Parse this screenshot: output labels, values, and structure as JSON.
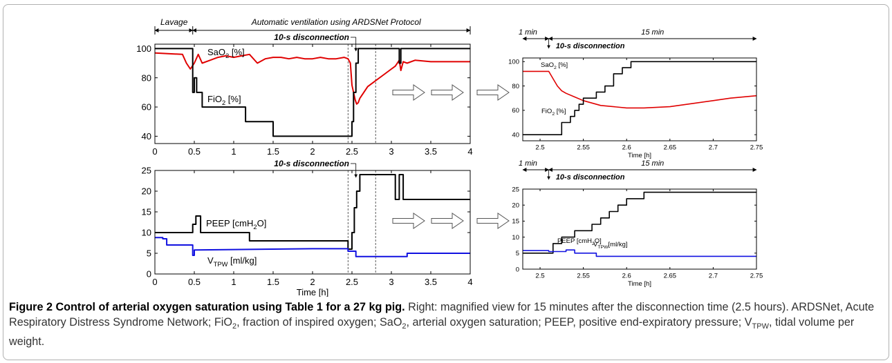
{
  "chart_data": [
    {
      "id": "main-top",
      "type": "line",
      "xlabel": "",
      "xlim": [
        0,
        4
      ],
      "ylim": [
        35,
        103
      ],
      "x_ticks": [
        "0",
        "0.5",
        "1",
        "1.5",
        "2",
        "2.5",
        "3",
        "3.5",
        "4"
      ],
      "y_ticks": [
        "40",
        "60",
        "80",
        "100"
      ],
      "annotations": {
        "lavage": "Lavage",
        "auto": "Automatic ventilation using ARDSNet Protocol",
        "disconnection": "10-s disconnection"
      },
      "series": [
        {
          "name": "SaO2 [%]",
          "color": "#e00000",
          "x": [
            0,
            0.35,
            0.4,
            0.45,
            0.5,
            0.55,
            0.6,
            0.7,
            0.8,
            0.9,
            1.0,
            1.1,
            1.2,
            1.3,
            1.4,
            1.5,
            1.6,
            1.7,
            1.8,
            1.9,
            2.0,
            2.1,
            2.2,
            2.3,
            2.4,
            2.45,
            2.48,
            2.5,
            2.52,
            2.54,
            2.56,
            2.58,
            2.6,
            2.65,
            2.7,
            2.8,
            2.9,
            3.0,
            3.05,
            3.1,
            3.12,
            3.15,
            3.2,
            3.3,
            3.5,
            3.7,
            3.9,
            4.0
          ],
          "y": [
            97,
            96,
            90,
            86,
            90,
            96,
            90,
            92,
            94,
            95,
            94,
            95,
            96,
            90,
            93,
            94,
            94,
            93,
            94,
            93,
            93,
            94,
            93,
            93,
            94,
            93,
            90,
            75,
            70,
            65,
            62,
            63,
            66,
            70,
            74,
            78,
            82,
            86,
            88,
            92,
            85,
            91,
            90,
            92,
            91,
            91,
            91,
            91
          ]
        },
        {
          "name": "FiO2 [%]",
          "color": "#000000",
          "x": [
            0,
            0.48,
            0.48,
            0.5,
            0.5,
            0.53,
            0.53,
            0.6,
            0.6,
            1.15,
            1.15,
            1.5,
            1.5,
            2.45,
            2.45,
            2.5,
            2.5,
            2.52,
            2.52,
            2.55,
            2.55,
            2.58,
            2.58,
            3.1,
            3.1,
            3.12,
            3.12,
            4.0
          ],
          "y": [
            100,
            100,
            70,
            70,
            80,
            80,
            70,
            70,
            60,
            60,
            50,
            50,
            40,
            40,
            40,
            40,
            50,
            50,
            70,
            70,
            90,
            90,
            100,
            100,
            90,
            90,
            100,
            100
          ]
        }
      ],
      "labels": {
        "sao2": "SaO",
        "sao2_sub": "2",
        "sao2_unit": " [%]",
        "fio2": "FiO",
        "fio2_sub": "2",
        "fio2_unit": " [%]"
      }
    },
    {
      "id": "main-bottom",
      "type": "line",
      "xlabel": "Time [h]",
      "xlim": [
        0,
        4
      ],
      "ylim": [
        0,
        25
      ],
      "x_ticks": [
        "0",
        "0.5",
        "1",
        "1.5",
        "2",
        "2.5",
        "3",
        "3.5",
        "4"
      ],
      "y_ticks": [
        "0",
        "5",
        "10",
        "15",
        "20",
        "25"
      ],
      "annotations": {
        "disconnection": "10-s disconnection"
      },
      "series": [
        {
          "name": "PEEP [cmH2O]",
          "color": "#000000",
          "x": [
            0,
            0.48,
            0.48,
            0.52,
            0.52,
            0.58,
            0.58,
            1.2,
            1.2,
            2.45,
            2.45,
            2.5,
            2.5,
            2.53,
            2.53,
            2.56,
            2.56,
            2.6,
            2.6,
            3.05,
            3.05,
            3.1,
            3.1,
            3.15,
            3.15,
            3.2,
            3.2,
            4.0
          ],
          "y": [
            10,
            10,
            12,
            12,
            14,
            14,
            10,
            10,
            8,
            8,
            6,
            6,
            10,
            10,
            16,
            16,
            20,
            20,
            24,
            24,
            18,
            18,
            24,
            24,
            18,
            18,
            18,
            18
          ]
        },
        {
          "name": "VTPW [ml/kg]",
          "color": "#1010e0",
          "x": [
            0,
            0.1,
            0.1,
            0.15,
            0.15,
            0.48,
            0.48,
            0.5,
            0.5,
            1.0,
            1.5,
            2.0,
            2.45,
            2.45,
            2.55,
            2.55,
            3.2,
            3.2,
            4.0
          ],
          "y": [
            8.8,
            8.8,
            8.5,
            8.5,
            7,
            7,
            4.5,
            4.5,
            5.8,
            5.9,
            6,
            6.1,
            6.1,
            5.5,
            5.5,
            4.2,
            4.2,
            5,
            5
          ]
        }
      ],
      "labels": {
        "peep": "PEEP [cmH",
        "peep_sub": "2",
        "peep_unit": "O]",
        "vt": "V",
        "vt_sub": "TPW",
        "vt_unit": " [ml/kg]"
      }
    },
    {
      "id": "zoom-top",
      "type": "line",
      "xlabel": "Time [h]",
      "xlim": [
        2.48,
        2.75
      ],
      "ylim": [
        35,
        103
      ],
      "x_ticks": [
        "2.5",
        "2.55",
        "2.6",
        "2.65",
        "2.7",
        "2.75"
      ],
      "y_ticks": [
        "40",
        "60",
        "80",
        "100"
      ],
      "annotations": {
        "one_min": "1 min",
        "fifteen_min": "15 min",
        "disconnection": "10-s disconnection"
      },
      "series": [
        {
          "name": "SaO2 [%]",
          "color": "#e00000",
          "x": [
            2.48,
            2.5,
            2.51,
            2.515,
            2.52,
            2.525,
            2.53,
            2.54,
            2.55,
            2.57,
            2.6,
            2.62,
            2.65,
            2.68,
            2.7,
            2.72,
            2.75
          ],
          "y": [
            92,
            92,
            92,
            86,
            80,
            76,
            74,
            71,
            68,
            64,
            62,
            62,
            63,
            66,
            68,
            70,
            72
          ]
        },
        {
          "name": "FiO2 [%]",
          "color": "#000000",
          "x": [
            2.48,
            2.51,
            2.51,
            2.525,
            2.525,
            2.535,
            2.535,
            2.54,
            2.54,
            2.545,
            2.545,
            2.55,
            2.55,
            2.555,
            2.555,
            2.565,
            2.565,
            2.575,
            2.575,
            2.585,
            2.585,
            2.595,
            2.595,
            2.605,
            2.605,
            2.75
          ],
          "y": [
            40,
            40,
            40,
            40,
            50,
            50,
            55,
            55,
            60,
            60,
            65,
            65,
            70,
            70,
            70,
            70,
            75,
            75,
            80,
            80,
            90,
            90,
            95,
            95,
            100,
            100
          ]
        }
      ],
      "labels": {
        "sao2": "SaO",
        "sao2_sub": "2",
        "sao2_unit": " [%]",
        "fio2": "FiO",
        "fio2_sub": "2",
        "fio2_unit": " [%]"
      }
    },
    {
      "id": "zoom-bottom",
      "type": "line",
      "xlabel": "Time [h]",
      "xlim": [
        2.48,
        2.75
      ],
      "ylim": [
        0,
        25
      ],
      "x_ticks": [
        "2.5",
        "2.55",
        "2.6",
        "2.65",
        "2.7",
        "2.75"
      ],
      "y_ticks": [
        "0",
        "5",
        "10",
        "15",
        "20",
        "25"
      ],
      "annotations": {
        "one_min": "1 min",
        "fifteen_min": "15 min",
        "disconnection": "10-s disconnection"
      },
      "series": [
        {
          "name": "PEEP [cmH2O]",
          "color": "#000000",
          "x": [
            2.48,
            2.515,
            2.515,
            2.525,
            2.525,
            2.54,
            2.54,
            2.56,
            2.56,
            2.57,
            2.57,
            2.58,
            2.58,
            2.59,
            2.59,
            2.6,
            2.6,
            2.61,
            2.61,
            2.62,
            2.62,
            2.63,
            2.63,
            2.635,
            2.635,
            2.64,
            2.64,
            2.75
          ],
          "y": [
            5,
            5,
            8,
            8,
            10,
            10,
            12,
            12,
            14,
            14,
            16,
            16,
            18,
            18,
            20,
            20,
            22,
            22,
            22,
            22,
            24,
            24,
            24,
            24,
            24,
            24,
            24,
            24
          ]
        },
        {
          "name": "VTPW [ml/kg]",
          "color": "#1010e0",
          "x": [
            2.48,
            2.51,
            2.51,
            2.53,
            2.53,
            2.54,
            2.54,
            2.565,
            2.565,
            2.75
          ],
          "y": [
            5.8,
            5.8,
            5.5,
            5.5,
            6,
            6,
            5,
            5,
            4,
            4
          ]
        }
      ],
      "labels": {
        "peep": "PEEP [cmH",
        "peep_sub": "2",
        "peep_unit": "O]",
        "vt": "V",
        "vt_sub": "TPW",
        "vt_unit": "[ml/kg]"
      }
    }
  ],
  "caption": {
    "figure_label": "Figure 2",
    "title": " Control of arterial oxygen saturation using Table 1 for a 27 kg pig.",
    "text_1": " Right: magnified view for 15 minutes after the disconnection time (2.5 hours). ARDSNet, Acute Respiratory Distress Syndrome Network; FiO",
    "sub_1": "2",
    "text_2": ", fraction of inspired oxygen; SaO",
    "sub_2": "2",
    "text_3": ", arterial oxygen saturation; PEEP, positive end-expiratory pressure; V",
    "sub_3": "TPW",
    "text_4": ", tidal volume per weight."
  }
}
